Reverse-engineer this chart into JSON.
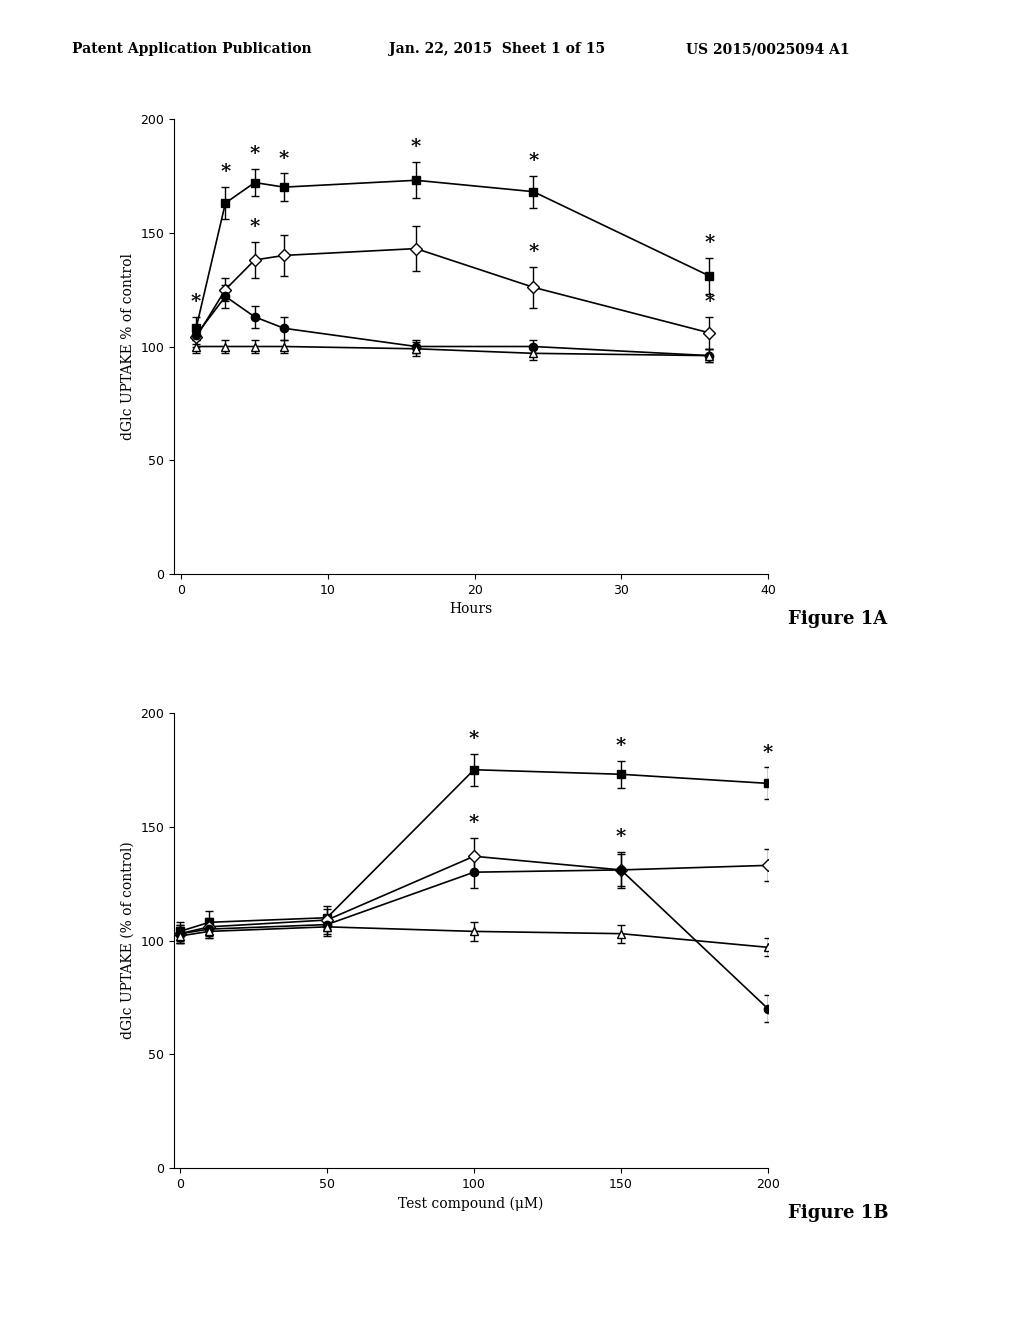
{
  "fig1a": {
    "xlabel": "Hours",
    "ylabel": "dGlc UPTAKE % of control",
    "xlim": [
      -0.5,
      40
    ],
    "ylim": [
      0,
      200
    ],
    "xticks": [
      0,
      10,
      20,
      30,
      40
    ],
    "yticks": [
      0,
      50,
      100,
      150,
      200
    ],
    "series": [
      {
        "label": "filled_square",
        "x": [
          1,
          3,
          5,
          7,
          16,
          24,
          36
        ],
        "y": [
          108,
          163,
          172,
          170,
          173,
          168,
          131
        ],
        "yerr": [
          5,
          7,
          6,
          6,
          8,
          7,
          8
        ],
        "marker": "s",
        "fillstyle": "full",
        "asterisks": [
          true,
          true,
          true,
          true,
          true,
          true,
          true
        ]
      },
      {
        "label": "open_diamond",
        "x": [
          1,
          3,
          5,
          7,
          16,
          24,
          36
        ],
        "y": [
          104,
          125,
          138,
          140,
          143,
          126,
          106
        ],
        "yerr": [
          4,
          5,
          8,
          9,
          10,
          9,
          7
        ],
        "marker": "D",
        "fillstyle": "none",
        "asterisks": [
          false,
          false,
          true,
          false,
          false,
          true,
          true
        ]
      },
      {
        "label": "filled_circle",
        "x": [
          1,
          3,
          5,
          7,
          16,
          24,
          36
        ],
        "y": [
          105,
          122,
          113,
          108,
          100,
          100,
          96
        ],
        "yerr": [
          4,
          5,
          5,
          5,
          3,
          3,
          3
        ],
        "marker": "o",
        "fillstyle": "full",
        "asterisks": [
          false,
          false,
          false,
          false,
          false,
          false,
          false
        ]
      },
      {
        "label": "open_triangle",
        "x": [
          1,
          3,
          5,
          7,
          16,
          24,
          36
        ],
        "y": [
          100,
          100,
          100,
          100,
          99,
          97,
          96
        ],
        "yerr": [
          3,
          3,
          3,
          3,
          3,
          3,
          3
        ],
        "marker": "^",
        "fillstyle": "none",
        "asterisks": [
          false,
          false,
          false,
          false,
          false,
          false,
          false
        ]
      }
    ],
    "figure_label": "Figure 1A"
  },
  "fig1b": {
    "xlabel": "Test compound (μM)",
    "ylabel": "dGlc UPTAKE (% of control)",
    "xlim": [
      -2,
      200
    ],
    "ylim": [
      0,
      200
    ],
    "xticks": [
      0,
      50,
      100,
      150,
      200
    ],
    "yticks": [
      0,
      50,
      100,
      150,
      200
    ],
    "series": [
      {
        "label": "filled_square",
        "x": [
          0,
          10,
          50,
          100,
          150,
          200
        ],
        "y": [
          104,
          108,
          110,
          175,
          173,
          169
        ],
        "yerr": [
          4,
          5,
          5,
          7,
          6,
          7
        ],
        "marker": "s",
        "fillstyle": "full",
        "asterisks": [
          false,
          false,
          false,
          true,
          true,
          true
        ]
      },
      {
        "label": "open_diamond",
        "x": [
          0,
          10,
          50,
          100,
          150,
          200
        ],
        "y": [
          103,
          106,
          109,
          137,
          131,
          133
        ],
        "yerr": [
          4,
          4,
          5,
          8,
          8,
          7
        ],
        "marker": "D",
        "fillstyle": "none",
        "asterisks": [
          false,
          false,
          false,
          true,
          true,
          false
        ]
      },
      {
        "label": "filled_circle",
        "x": [
          0,
          10,
          50,
          100,
          150,
          200
        ],
        "y": [
          103,
          105,
          107,
          130,
          131,
          70
        ],
        "yerr": [
          4,
          4,
          4,
          7,
          7,
          6
        ],
        "marker": "o",
        "fillstyle": "full",
        "asterisks": [
          false,
          false,
          false,
          false,
          false,
          false
        ]
      },
      {
        "label": "open_triangle",
        "x": [
          0,
          10,
          50,
          100,
          150,
          200
        ],
        "y": [
          102,
          104,
          106,
          104,
          103,
          97
        ],
        "yerr": [
          3,
          3,
          4,
          4,
          4,
          4
        ],
        "marker": "^",
        "fillstyle": "none",
        "asterisks": [
          false,
          false,
          false,
          false,
          false,
          false
        ]
      }
    ],
    "figure_label": "Figure 1B"
  },
  "header_left": "Patent Application Publication",
  "header_center": "Jan. 22, 2015  Sheet 1 of 15",
  "header_right": "US 2015/0025094 A1",
  "background_color": "#ffffff",
  "line_color": "#000000",
  "font_size_axis_label": 10,
  "font_size_tick": 9,
  "font_size_header": 10,
  "font_size_figure_label": 13,
  "font_size_asterisk": 14,
  "markersize": 6,
  "linewidth": 1.2,
  "capsize": 3,
  "elinewidth": 1.0
}
